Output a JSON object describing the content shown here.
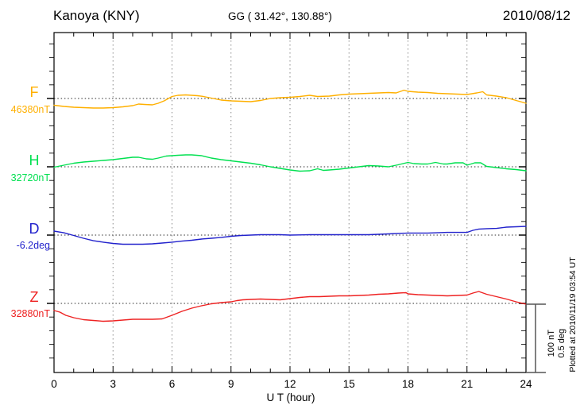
{
  "header": {
    "station": "Kanoya (KNY)",
    "coordinates": "GG ( 31.42°, 130.88°)",
    "date": "2010/08/12"
  },
  "xaxis": {
    "label": "U T (hour)",
    "tick_labels": [
      "0",
      "3",
      "6",
      "9",
      "12",
      "15",
      "18",
      "21",
      "24"
    ]
  },
  "scale_bar": {
    "nT_label": "100 nT",
    "deg_label": "0.5 deg"
  },
  "plotted_note": "Plotted at 2010/11/19 03:54 UT",
  "chart_data": {
    "type": "line",
    "title": "Kanoya (KNY) magnetogram 2010/08/12",
    "xlabel": "U T (hour)",
    "x_range": [
      0,
      24
    ],
    "x_major_tick_hours": [
      0,
      3,
      6,
      9,
      12,
      15,
      18,
      21,
      24
    ],
    "x_minor_tick_step_hours": 1,
    "gridline_hours": [
      3,
      6,
      9,
      12,
      15,
      18,
      21
    ],
    "grid_style": "dotted",
    "legend_position": "left-margin",
    "y_scale": {
      "per_division_nT": 100,
      "per_division_deg": 0.5,
      "minor_tick_nT": 20,
      "minor_tick_deg": 0.1
    },
    "series": [
      {
        "component": "F",
        "unit": "nT",
        "reference_value": 46380,
        "reference_label": "46380nT",
        "color": "#ffb000",
        "points_hour_offset": [
          [
            0,
            -9.9
          ],
          [
            0.5,
            -11.6
          ],
          [
            1,
            -12.8
          ],
          [
            1.5,
            -13.4
          ],
          [
            2,
            -14
          ],
          [
            2.5,
            -14
          ],
          [
            3,
            -13.4
          ],
          [
            3.5,
            -12.2
          ],
          [
            4,
            -10.5
          ],
          [
            4.3,
            -8.1
          ],
          [
            4.6,
            -8.7
          ],
          [
            5,
            -9.3
          ],
          [
            5.3,
            -7
          ],
          [
            5.6,
            -3.5
          ],
          [
            6,
            2.9
          ],
          [
            6.3,
            4.7
          ],
          [
            6.7,
            5.2
          ],
          [
            7,
            4.7
          ],
          [
            7.3,
            4.1
          ],
          [
            7.6,
            2.9
          ],
          [
            8,
            0.6
          ],
          [
            8.5,
            -2.3
          ],
          [
            9,
            -3.5
          ],
          [
            9.5,
            -4.1
          ],
          [
            10,
            -4.7
          ],
          [
            10.5,
            -2.9
          ],
          [
            11,
            0
          ],
          [
            11.5,
            1.2
          ],
          [
            12,
            1.7
          ],
          [
            12.5,
            2.9
          ],
          [
            13,
            4.7
          ],
          [
            13.4,
            2.9
          ],
          [
            14,
            3.5
          ],
          [
            14.5,
            5.2
          ],
          [
            15,
            6.4
          ],
          [
            15.5,
            7
          ],
          [
            16,
            7.6
          ],
          [
            16.5,
            8.1
          ],
          [
            17,
            8.7
          ],
          [
            17.4,
            8.1
          ],
          [
            17.8,
            12.2
          ],
          [
            18,
            10.5
          ],
          [
            18.5,
            9.3
          ],
          [
            19,
            8.7
          ],
          [
            19.5,
            7.6
          ],
          [
            20,
            7
          ],
          [
            20.5,
            6.4
          ],
          [
            21,
            5.8
          ],
          [
            21.5,
            8.1
          ],
          [
            21.8,
            9.9
          ],
          [
            22,
            5.2
          ],
          [
            22.5,
            3.5
          ],
          [
            23,
            1.2
          ],
          [
            23.5,
            -2.9
          ],
          [
            24,
            -7
          ]
        ]
      },
      {
        "component": "H",
        "unit": "nT",
        "reference_value": 32720,
        "reference_label": "32720nT",
        "color": "#00e050",
        "points_hour_offset": [
          [
            0,
            -0.6
          ],
          [
            0.5,
            2.3
          ],
          [
            1,
            5.2
          ],
          [
            1.5,
            7
          ],
          [
            2,
            8.1
          ],
          [
            2.5,
            9.3
          ],
          [
            3,
            10.5
          ],
          [
            3.5,
            12.2
          ],
          [
            4,
            14
          ],
          [
            4.3,
            14
          ],
          [
            4.7,
            11.6
          ],
          [
            5,
            11
          ],
          [
            5.3,
            12.8
          ],
          [
            5.7,
            15.7
          ],
          [
            6,
            16.3
          ],
          [
            6.3,
            16.9
          ],
          [
            6.7,
            17.4
          ],
          [
            7,
            17.4
          ],
          [
            7.5,
            16.3
          ],
          [
            8,
            12.8
          ],
          [
            8.5,
            10.5
          ],
          [
            9,
            8.7
          ],
          [
            9.5,
            7
          ],
          [
            10,
            5.2
          ],
          [
            10.5,
            2.9
          ],
          [
            11,
            0
          ],
          [
            11.5,
            -2.3
          ],
          [
            12,
            -4.7
          ],
          [
            12.5,
            -6.4
          ],
          [
            13,
            -5.8
          ],
          [
            13.4,
            -2.9
          ],
          [
            13.7,
            -5.2
          ],
          [
            14,
            -4.7
          ],
          [
            14.5,
            -3.5
          ],
          [
            15,
            -1.7
          ],
          [
            15.5,
            0
          ],
          [
            16,
            1.7
          ],
          [
            16.5,
            1.2
          ],
          [
            17,
            0
          ],
          [
            17.5,
            2.9
          ],
          [
            18,
            6.4
          ],
          [
            18.3,
            4.7
          ],
          [
            18.7,
            4.1
          ],
          [
            19,
            4.1
          ],
          [
            19.4,
            6.4
          ],
          [
            19.8,
            4.1
          ],
          [
            20,
            4.1
          ],
          [
            20.4,
            5.8
          ],
          [
            20.8,
            5.8
          ],
          [
            21,
            2.3
          ],
          [
            21.4,
            5.8
          ],
          [
            21.7,
            5.8
          ],
          [
            22,
            0.6
          ],
          [
            22.5,
            -1.2
          ],
          [
            23,
            -2.9
          ],
          [
            23.5,
            -4.1
          ],
          [
            24,
            -5.8
          ]
        ]
      },
      {
        "component": "D",
        "unit": "deg",
        "reference_value": -6.2,
        "reference_label": "-6.2deg",
        "color": "#2222cc",
        "points_hour_offset": [
          [
            0,
            0.029
          ],
          [
            0.5,
            0.017
          ],
          [
            1,
            -0.003
          ],
          [
            1.5,
            -0.023
          ],
          [
            2,
            -0.041
          ],
          [
            2.5,
            -0.052
          ],
          [
            3,
            -0.061
          ],
          [
            3.5,
            -0.067
          ],
          [
            4,
            -0.067
          ],
          [
            4.5,
            -0.067
          ],
          [
            5,
            -0.064
          ],
          [
            5.5,
            -0.058
          ],
          [
            6,
            -0.052
          ],
          [
            6.5,
            -0.044
          ],
          [
            7,
            -0.038
          ],
          [
            7.5,
            -0.029
          ],
          [
            8,
            -0.023
          ],
          [
            8.5,
            -0.017
          ],
          [
            9,
            -0.009
          ],
          [
            9.5,
            -0.003
          ],
          [
            10,
            0
          ],
          [
            10.5,
            0.003
          ],
          [
            11,
            0.003
          ],
          [
            11.5,
            0.003
          ],
          [
            12,
            0
          ],
          [
            13,
            0.003
          ],
          [
            14,
            0.003
          ],
          [
            15,
            0.003
          ],
          [
            16,
            0.003
          ],
          [
            17,
            0.009
          ],
          [
            18,
            0.015
          ],
          [
            19,
            0.015
          ],
          [
            20,
            0.02
          ],
          [
            21,
            0.02
          ],
          [
            21.3,
            0.035
          ],
          [
            21.6,
            0.044
          ],
          [
            22,
            0.047
          ],
          [
            22.5,
            0.049
          ],
          [
            23,
            0.058
          ],
          [
            23.5,
            0.061
          ],
          [
            24,
            0.064
          ]
        ]
      },
      {
        "component": "Z",
        "unit": "nT",
        "reference_value": 32880,
        "reference_label": "32880nT",
        "color": "#ee2222",
        "points_hour_offset": [
          [
            0,
            -10.5
          ],
          [
            0.3,
            -12.8
          ],
          [
            0.6,
            -17.4
          ],
          [
            1,
            -20.9
          ],
          [
            1.5,
            -23.8
          ],
          [
            2,
            -25
          ],
          [
            2.5,
            -26.2
          ],
          [
            3,
            -25.6
          ],
          [
            3.5,
            -24.4
          ],
          [
            4,
            -23.3
          ],
          [
            4.5,
            -23.3
          ],
          [
            5,
            -23.3
          ],
          [
            5.5,
            -22.7
          ],
          [
            6,
            -17.4
          ],
          [
            6.5,
            -11.6
          ],
          [
            7,
            -7
          ],
          [
            7.5,
            -3.5
          ],
          [
            8,
            -0.6
          ],
          [
            8.5,
            1.2
          ],
          [
            9,
            2.3
          ],
          [
            9.3,
            4.1
          ],
          [
            9.6,
            5.2
          ],
          [
            10,
            5.8
          ],
          [
            10.5,
            6.4
          ],
          [
            11,
            5.8
          ],
          [
            11.5,
            5.2
          ],
          [
            12,
            7
          ],
          [
            12.5,
            8.7
          ],
          [
            13,
            9.9
          ],
          [
            13.5,
            9.9
          ],
          [
            14,
            10.5
          ],
          [
            14.5,
            11
          ],
          [
            15,
            11
          ],
          [
            15.5,
            11.6
          ],
          [
            16,
            12.2
          ],
          [
            16.5,
            13.4
          ],
          [
            17,
            14
          ],
          [
            17.5,
            15.1
          ],
          [
            17.9,
            15.7
          ],
          [
            18,
            14
          ],
          [
            18.5,
            12.8
          ],
          [
            19,
            12.2
          ],
          [
            19.5,
            11.6
          ],
          [
            20,
            11
          ],
          [
            20.5,
            11.6
          ],
          [
            21,
            12.2
          ],
          [
            21.3,
            15.1
          ],
          [
            21.6,
            17.4
          ],
          [
            22,
            13.4
          ],
          [
            22.5,
            9.9
          ],
          [
            23,
            6.4
          ],
          [
            23.5,
            2.3
          ],
          [
            24,
            -1.2
          ]
        ]
      }
    ]
  }
}
